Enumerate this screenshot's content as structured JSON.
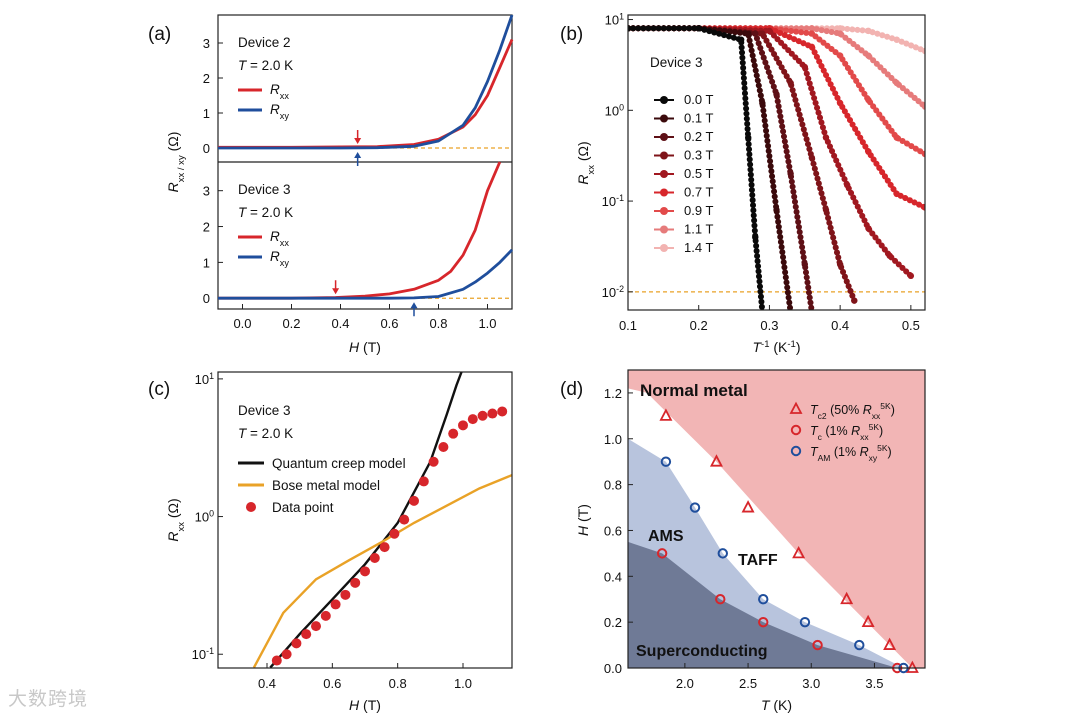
{
  "watermark": "大数跨境",
  "chart_data": [
    {
      "panel": "(a)",
      "type": "line",
      "xlabel_var": "H",
      "xlabel_unit": " (T)",
      "ylabel_var": "R",
      "ylabel_sub": "xx / xy",
      "ylabel_unit": " (Ω)",
      "xlim": [
        -0.1,
        1.1
      ],
      "xticks": [
        "0.0",
        "0.2",
        "0.4",
        "0.6",
        "0.8",
        "1.0"
      ],
      "subpanels": [
        {
          "device": "Device 2",
          "temp": "= 2.0 K",
          "ylim": [
            -0.4,
            3.8
          ],
          "yticks": [
            "0",
            "1",
            "2",
            "3"
          ],
          "legend": [
            {
              "var": "R",
              "sub": "xx",
              "color": "#d7262b"
            },
            {
              "var": "R",
              "sub": "xy",
              "color": "#1f4e9c"
            }
          ],
          "series": [
            {
              "name": "Rxx",
              "color": "#d7262b",
              "x": [
                -0.1,
                0.0,
                0.2,
                0.4,
                0.55,
                0.7,
                0.8,
                0.9,
                0.95,
                1.0,
                1.05,
                1.1
              ],
              "y": [
                0.02,
                0.02,
                0.02,
                0.03,
                0.04,
                0.1,
                0.25,
                0.6,
                0.95,
                1.5,
                2.3,
                3.1
              ]
            },
            {
              "name": "Rxy",
              "color": "#1f4e9c",
              "x": [
                -0.1,
                0.0,
                0.2,
                0.4,
                0.55,
                0.7,
                0.8,
                0.9,
                0.95,
                1.0,
                1.05,
                1.1
              ],
              "y": [
                0.0,
                0.0,
                0.0,
                0.0,
                0.01,
                0.05,
                0.2,
                0.65,
                1.15,
                1.9,
                2.8,
                3.8
              ]
            }
          ],
          "arrows": [
            {
              "x": 0.47,
              "color": "#d7262b"
            },
            {
              "x": 0.47,
              "color": "#1f4e9c"
            }
          ]
        },
        {
          "device": "Device 3",
          "temp": "= 2.0 K",
          "ylim": [
            -0.3,
            3.8
          ],
          "yticks": [
            "0",
            "1",
            "2",
            "3"
          ],
          "legend": [
            {
              "var": "R",
              "sub": "xx",
              "color": "#d7262b"
            },
            {
              "var": "R",
              "sub": "xy",
              "color": "#1f4e9c"
            }
          ],
          "series": [
            {
              "name": "Rxx",
              "color": "#d7262b",
              "x": [
                -0.1,
                0.2,
                0.38,
                0.5,
                0.6,
                0.7,
                0.8,
                0.85,
                0.9,
                0.95,
                1.0,
                1.05
              ],
              "y": [
                0.0,
                0.0,
                0.02,
                0.06,
                0.12,
                0.25,
                0.5,
                0.75,
                1.2,
                1.9,
                3.0,
                3.8
              ]
            },
            {
              "name": "Rxy",
              "color": "#1f4e9c",
              "x": [
                -0.1,
                0.4,
                0.6,
                0.7,
                0.8,
                0.9,
                0.95,
                1.0,
                1.05,
                1.1
              ],
              "y": [
                0.0,
                0.0,
                0.0,
                0.01,
                0.05,
                0.25,
                0.45,
                0.7,
                1.0,
                1.35
              ]
            }
          ],
          "arrows": [
            {
              "x": 0.38,
              "color": "#d7262b"
            },
            {
              "x": 0.7,
              "color": "#1f4e9c"
            }
          ]
        }
      ]
    },
    {
      "panel": "(b)",
      "type": "scatter",
      "scale_y": "log",
      "device": "Device 3",
      "xlabel_main": "T",
      "xlabel_sup": "-1",
      "xlabel_unit": " (K",
      "xlabel_unit_sup": "-1",
      "ylabel_var": "R",
      "ylabel_sub": "xx",
      "ylabel_unit": " (Ω)",
      "xlim": [
        0.1,
        0.52
      ],
      "ylim_exp": [
        -2.2,
        1.05
      ],
      "xticks": [
        "0.1",
        "0.2",
        "0.3",
        "0.4",
        "0.5"
      ],
      "yticks": [
        {
          "base": "10",
          "exp": "1"
        },
        {
          "base": "10",
          "exp": "0"
        },
        {
          "base": "10",
          "exp": "-1"
        },
        {
          "base": "10",
          "exp": "-2"
        }
      ],
      "threshold": 0.01,
      "series": [
        {
          "name": "0.0 T",
          "color": "#0a0a0a",
          "x": [
            0.1,
            0.2,
            0.26,
            0.27,
            0.28,
            0.29
          ],
          "y": [
            8,
            8,
            6,
            0.5,
            0.04,
            0.006
          ]
        },
        {
          "name": "0.1 T",
          "color": "#3b0a0c",
          "x": [
            0.1,
            0.2,
            0.27,
            0.29,
            0.31,
            0.33
          ],
          "y": [
            8,
            8,
            7,
            1.2,
            0.08,
            0.006
          ]
        },
        {
          "name": "0.2 T",
          "color": "#5e1016",
          "x": [
            0.1,
            0.2,
            0.28,
            0.31,
            0.33,
            0.35,
            0.36
          ],
          "y": [
            8,
            8,
            7,
            1.5,
            0.2,
            0.02,
            0.006
          ]
        },
        {
          "name": "0.3 T",
          "color": "#7f1419",
          "x": [
            0.1,
            0.2,
            0.29,
            0.33,
            0.36,
            0.38,
            0.4,
            0.42
          ],
          "y": [
            8,
            8,
            7,
            2,
            0.3,
            0.08,
            0.02,
            0.008
          ]
        },
        {
          "name": "0.5 T",
          "color": "#a11820",
          "x": [
            0.1,
            0.2,
            0.3,
            0.35,
            0.38,
            0.41,
            0.44,
            0.47,
            0.5
          ],
          "y": [
            8,
            8,
            7.5,
            3,
            0.5,
            0.15,
            0.05,
            0.025,
            0.015
          ]
        },
        {
          "name": "0.7 T",
          "color": "#d7262b",
          "x": [
            0.1,
            0.2,
            0.3,
            0.36,
            0.4,
            0.44,
            0.48,
            0.52
          ],
          "y": [
            8,
            8,
            8,
            5,
            1.2,
            0.35,
            0.12,
            0.085
          ]
        },
        {
          "name": "0.9 T",
          "color": "#e24a4a",
          "x": [
            0.1,
            0.2,
            0.3,
            0.36,
            0.4,
            0.44,
            0.48,
            0.52
          ],
          "y": [
            8,
            8,
            8,
            7,
            4,
            1.3,
            0.5,
            0.33
          ]
        },
        {
          "name": "1.1 T",
          "color": "#e67b7b",
          "x": [
            0.1,
            0.2,
            0.3,
            0.36,
            0.4,
            0.44,
            0.48,
            0.52
          ],
          "y": [
            8,
            8,
            8,
            8,
            7,
            4,
            2,
            1.1
          ]
        },
        {
          "name": "1.4 T",
          "color": "#f2b3b1",
          "x": [
            0.1,
            0.2,
            0.3,
            0.36,
            0.4,
            0.44,
            0.48,
            0.52
          ],
          "y": [
            8,
            8,
            8,
            8,
            8,
            7.5,
            6,
            4.5
          ]
        }
      ]
    },
    {
      "panel": "(c)",
      "type": "line",
      "scale_y": "log",
      "device": "Device 3",
      "temp": "= 2.0 K",
      "xlabel_var": "H",
      "xlabel_unit": " (T)",
      "ylabel_var": "R",
      "ylabel_sub": "xx",
      "ylabel_unit": " (Ω)",
      "xlim": [
        0.25,
        1.15
      ],
      "ylim_exp": [
        -1.1,
        1.05
      ],
      "xticks": [
        "0.4",
        "0.6",
        "0.8",
        "1.0"
      ],
      "yticks": [
        {
          "base": "10",
          "exp": "1"
        },
        {
          "base": "10",
          "exp": "0"
        },
        {
          "base": "10",
          "exp": "-1"
        }
      ],
      "legend": [
        {
          "label": "Quantum creep model",
          "color": "#111111",
          "kind": "line"
        },
        {
          "label": "Bose metal model",
          "color": "#e9a227",
          "kind": "line"
        },
        {
          "label": "Data point",
          "color": "#d7262b",
          "kind": "dot"
        }
      ],
      "series": [
        {
          "name": "Quantum creep model",
          "color": "#111111",
          "x": [
            0.41,
            0.5,
            0.6,
            0.7,
            0.8,
            0.9,
            0.95,
            0.98,
            1.0
          ],
          "y": [
            0.08,
            0.14,
            0.25,
            0.45,
            0.9,
            2.5,
            5.5,
            9,
            12
          ]
        },
        {
          "name": "Bose metal model",
          "color": "#e9a227",
          "x": [
            0.36,
            0.45,
            0.55,
            0.65,
            0.75,
            0.85,
            0.95,
            1.05,
            1.15
          ],
          "y": [
            0.08,
            0.2,
            0.35,
            0.48,
            0.65,
            0.9,
            1.2,
            1.6,
            2.0
          ]
        },
        {
          "name": "Data point",
          "color": "#d7262b",
          "x": [
            0.43,
            0.46,
            0.49,
            0.52,
            0.55,
            0.58,
            0.61,
            0.64,
            0.67,
            0.7,
            0.73,
            0.76,
            0.79,
            0.82,
            0.85,
            0.88,
            0.91,
            0.94,
            0.97,
            1.0,
            1.03,
            1.06,
            1.09,
            1.12
          ],
          "y": [
            0.09,
            0.1,
            0.12,
            0.14,
            0.16,
            0.19,
            0.23,
            0.27,
            0.33,
            0.4,
            0.5,
            0.6,
            0.75,
            0.95,
            1.3,
            1.8,
            2.5,
            3.2,
            4.0,
            4.6,
            5.1,
            5.4,
            5.6,
            5.8
          ]
        }
      ]
    },
    {
      "panel": "(d)",
      "type": "scatter",
      "xlabel_var": "T",
      "xlabel_unit": " (K)",
      "ylabel_var": "H",
      "ylabel_unit": " (T)",
      "xlim": [
        1.55,
        3.9
      ],
      "ylim": [
        0.0,
        1.3
      ],
      "xticks": [
        "2.0",
        "2.5",
        "3.0",
        "3.5"
      ],
      "yticks": [
        "0.0",
        "0.2",
        "0.4",
        "0.6",
        "0.8",
        "1.0",
        "1.2"
      ],
      "regions": [
        {
          "label": "Normal metal",
          "color": "#f2b5b5"
        },
        {
          "label": "AMS",
          "color": "#b8c4dd"
        },
        {
          "label": "TAFF",
          "color": "#ffffff"
        },
        {
          "label": "Superconducting",
          "color": "#6f7a96"
        }
      ],
      "legend": [
        {
          "marker": "triangle",
          "color": "#d7262b",
          "var": "T",
          "sub": "c2",
          "text": " (50% ",
          "rvar": "R",
          "rsub": "xx",
          "rsup": "5K",
          "close": ")"
        },
        {
          "marker": "circle",
          "color": "#d7262b",
          "var": "T",
          "sub": "c",
          "text": " (1% ",
          "rvar": "R",
          "rsub": "xx",
          "rsup": "5K",
          "close": ")"
        },
        {
          "marker": "circle",
          "color": "#1f4e9c",
          "var": "T",
          "sub": "AM",
          "text": " (1% ",
          "rvar": "R",
          "rsub": "xy",
          "rsup": "5K",
          "close": ")"
        }
      ],
      "series": [
        {
          "name": "Tc2",
          "marker": "triangle",
          "color": "#d7262b",
          "x": [
            1.85,
            2.25,
            2.5,
            2.9,
            3.28,
            3.45,
            3.62,
            3.8
          ],
          "y": [
            1.1,
            0.9,
            0.7,
            0.5,
            0.3,
            0.2,
            0.1,
            0.0
          ]
        },
        {
          "name": "Tc",
          "marker": "circle",
          "color": "#d7262b",
          "x": [
            1.82,
            2.28,
            2.62,
            3.05,
            3.68
          ],
          "y": [
            0.5,
            0.3,
            0.2,
            0.1,
            0.0
          ]
        },
        {
          "name": "TAM",
          "marker": "circle",
          "color": "#1f4e9c",
          "x": [
            1.85,
            2.08,
            2.3,
            2.62,
            2.95,
            3.38,
            3.73
          ],
          "y": [
            0.9,
            0.7,
            0.5,
            0.3,
            0.2,
            0.1,
            0.0
          ]
        }
      ]
    }
  ]
}
